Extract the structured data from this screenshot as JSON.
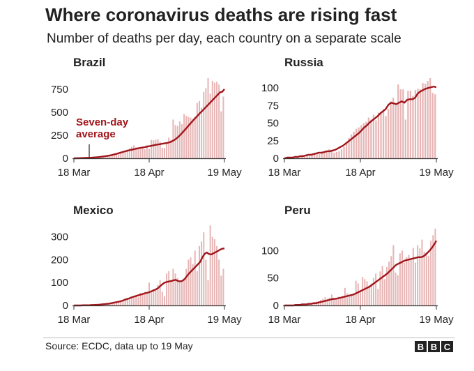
{
  "title": "Where coronavirus deaths are rising fast",
  "subtitle": "Number of deaths per day, each country on a separate scale",
  "source": "Source: ECDC, data up to 19 May",
  "logo": [
    "B",
    "B",
    "C"
  ],
  "colors": {
    "bar": "#e7b5b5",
    "line": "#a0161c",
    "axis": "#333333",
    "grid": "#d9d9d9",
    "text": "#222222"
  },
  "chart_data": [
    {
      "type": "bar",
      "title": "Brazil",
      "x_tick_labels": [
        "18 Mar",
        "18 Apr",
        "19 May"
      ],
      "x_start": "18 Mar",
      "x_end": "19 May",
      "ylim": [
        0,
        900
      ],
      "yticks": [
        0,
        250,
        500,
        750
      ],
      "grid": false,
      "annotation": {
        "text": [
          "Seven-day",
          "average"
        ],
        "at_day": 6
      },
      "series": [
        {
          "name": "",
          "kind": "bar",
          "values": [
            0,
            0,
            0,
            1,
            2,
            3,
            3,
            4,
            6,
            9,
            10,
            11,
            14,
            18,
            19,
            23,
            30,
            35,
            41,
            47,
            55,
            62,
            70,
            80,
            95,
            110,
            125,
            140,
            120,
            105,
            99,
            115,
            98,
            145,
            105,
            200,
            195,
            200,
            210,
            180,
            115,
            113,
            170,
            225,
            200,
            420,
            360,
            350,
            400,
            370,
            480,
            460,
            450,
            440,
            430,
            450,
            600,
            620,
            550,
            720,
            760,
            870,
            700,
            840,
            820,
            830,
            800,
            510,
            670
          ]
        },
        {
          "name": "Seven-day average",
          "kind": "line",
          "values": [
            0,
            1,
            1,
            2,
            3,
            4,
            5,
            6,
            7,
            9,
            11,
            13,
            16,
            19,
            22,
            26,
            30,
            35,
            41,
            47,
            54,
            61,
            68,
            75,
            81,
            87,
            92,
            98,
            103,
            108,
            113,
            117,
            121,
            126,
            131,
            136,
            141,
            146,
            150,
            154,
            158,
            162,
            166,
            172,
            180,
            194,
            209,
            228,
            252,
            278,
            305,
            332,
            360,
            387,
            414,
            440,
            466,
            492,
            515,
            540,
            565,
            590,
            615,
            640,
            665,
            690,
            715,
            722,
            750
          ]
        }
      ]
    },
    {
      "type": "bar",
      "title": "Russia",
      "x_tick_labels": [
        "18 Apr",
        "19 May"
      ],
      "x_start": "11 Apr",
      "x_end": "19 May",
      "ylim": [
        0,
        118
      ],
      "yticks": [
        0,
        25,
        50,
        75,
        100
      ],
      "grid": false,
      "series": [
        {
          "name": "",
          "kind": "bar",
          "values": [
            0,
            1,
            1,
            2,
            2,
            3,
            3,
            5,
            7,
            8,
            6,
            9,
            10,
            9,
            13,
            10,
            8,
            9,
            10,
            13,
            16,
            22,
            29,
            34,
            38,
            42,
            44,
            47,
            50,
            52,
            58,
            55,
            62,
            54,
            65,
            66,
            70,
            60,
            70,
            81,
            86,
            77,
            105,
            98,
            98,
            55,
            96,
            96,
            89,
            97,
            99,
            98,
            107,
            106,
            110,
            114,
            93,
            91
          ]
        },
        {
          "name": "Seven-day average",
          "kind": "line",
          "values": [
            0,
            1,
            1,
            1,
            2,
            2,
            3,
            3,
            4,
            5,
            5,
            6,
            7,
            8,
            8,
            9,
            10,
            10,
            11,
            12,
            14,
            16,
            18,
            21,
            24,
            27,
            30,
            33,
            36,
            40,
            44,
            47,
            51,
            54,
            57,
            60,
            64,
            67,
            70,
            76,
            79,
            78,
            77,
            79,
            81,
            79,
            83,
            84,
            84,
            86,
            92,
            95,
            97,
            99,
            100,
            101,
            102,
            101
          ]
        }
      ]
    },
    {
      "type": "bar",
      "title": "Mexico",
      "x_tick_labels": [
        "18 Mar",
        "18 Apr",
        "19 May"
      ],
      "x_start": "18 Mar",
      "x_end": "19 May",
      "ylim": [
        0,
        360
      ],
      "yticks": [
        0,
        100,
        200,
        300
      ],
      "grid": false,
      "series": [
        {
          "name": "",
          "kind": "bar",
          "values": [
            0,
            0,
            0,
            0,
            0,
            1,
            1,
            1,
            2,
            2,
            3,
            3,
            4,
            5,
            6,
            7,
            8,
            10,
            12,
            14,
            18,
            20,
            25,
            30,
            25,
            35,
            38,
            40,
            45,
            36,
            55,
            48,
            60,
            50,
            100,
            65,
            72,
            66,
            90,
            110,
            60,
            40,
            140,
            150,
            110,
            160,
            140,
            120,
            100,
            110,
            120,
            160,
            200,
            210,
            180,
            240,
            150,
            260,
            280,
            320,
            200,
            110,
            350,
            300,
            290,
            260,
            200,
            130,
            160
          ]
        },
        {
          "name": "Seven-day average",
          "kind": "line",
          "values": [
            0,
            0,
            0,
            0,
            1,
            1,
            1,
            1,
            2,
            2,
            3,
            3,
            4,
            5,
            6,
            7,
            8,
            10,
            12,
            14,
            16,
            18,
            21,
            25,
            28,
            31,
            35,
            38,
            41,
            44,
            47,
            50,
            53,
            55,
            58,
            62,
            66,
            70,
            76,
            85,
            93,
            100,
            103,
            105,
            107,
            110,
            112,
            107,
            105,
            108,
            115,
            128,
            140,
            150,
            160,
            170,
            180,
            190,
            210,
            225,
            232,
            225,
            223,
            228,
            233,
            238,
            244,
            248,
            250
          ]
        }
      ]
    },
    {
      "type": "bar",
      "title": "Peru",
      "x_tick_labels": [
        "18 Mar",
        "18 Apr",
        "19 May"
      ],
      "x_start": "18 Mar",
      "x_end": "19 May",
      "ylim": [
        0,
        150
      ],
      "yticks": [
        0,
        50,
        100
      ],
      "grid": false,
      "series": [
        {
          "name": "",
          "kind": "bar",
          "values": [
            0,
            0,
            0,
            0,
            1,
            1,
            1,
            2,
            3,
            3,
            4,
            4,
            5,
            6,
            7,
            8,
            10,
            12,
            15,
            12,
            14,
            20,
            12,
            10,
            16,
            14,
            15,
            32,
            22,
            18,
            20,
            22,
            45,
            40,
            28,
            52,
            48,
            44,
            36,
            40,
            50,
            58,
            30,
            62,
            72,
            48,
            70,
            80,
            90,
            110,
            60,
            55,
            95,
            100,
            78,
            88,
            92,
            85,
            105,
            78,
            110,
            104,
            120,
            98,
            96,
            90,
            118,
            128,
            140
          ]
        },
        {
          "name": "Seven-day average",
          "kind": "line",
          "values": [
            0,
            0,
            0,
            0,
            0,
            1,
            1,
            1,
            2,
            2,
            2,
            3,
            3,
            4,
            4,
            5,
            6,
            7,
            8,
            9,
            10,
            11,
            12,
            12,
            13,
            14,
            15,
            16,
            17,
            18,
            19,
            20,
            22,
            24,
            26,
            28,
            30,
            32,
            34,
            37,
            40,
            43,
            46,
            49,
            52,
            55,
            58,
            62,
            66,
            70,
            74,
            76,
            78,
            80,
            82,
            83,
            84,
            85,
            86,
            87,
            88,
            88,
            89,
            92,
            96,
            100,
            105,
            111,
            118
          ]
        }
      ]
    }
  ]
}
